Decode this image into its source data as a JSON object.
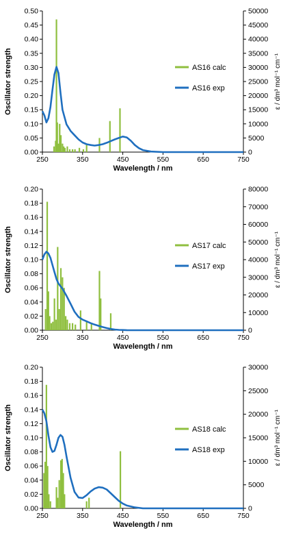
{
  "chart_data": [
    {
      "type": "bar+line",
      "xlabel": "Wavelength / nm",
      "ylabel": "Oscillator strength",
      "y2label": "ε / dm³ mol⁻¹ cm⁻¹",
      "xlim": [
        250,
        750
      ],
      "ylim": [
        0,
        0.5
      ],
      "y2lim": [
        0,
        50000
      ],
      "x_ticks": [
        "250",
        "350",
        "450",
        "550",
        "650",
        "750"
      ],
      "y_ticks": [
        "0.00",
        "0.05",
        "0.10",
        "0.15",
        "0.20",
        "0.25",
        "0.30",
        "0.35",
        "0.40",
        "0.45",
        "0.50"
      ],
      "y2_ticks": [
        "0",
        "5000",
        "10000",
        "15000",
        "20000",
        "25000",
        "30000",
        "35000",
        "40000",
        "45000",
        "50000"
      ],
      "legend_position": "right",
      "calc_color": "#8fbf3f",
      "exp_color": "#1f6fbf",
      "series": [
        {
          "name": "AS16 calc",
          "kind": "stick",
          "x": [
            279,
            283,
            285,
            287,
            290,
            293,
            296,
            300,
            303,
            306,
            312,
            318,
            325,
            331,
            342,
            352,
            360,
            392,
            418,
            443
          ],
          "values": [
            0.02,
            0.04,
            0.47,
            0.105,
            0.03,
            0.1,
            0.06,
            0.03,
            0.02,
            0.015,
            0.02,
            0.01,
            0.01,
            0.01,
            0.015,
            0.01,
            0.025,
            0.05,
            0.11,
            0.155
          ]
        },
        {
          "name": "AS16 exp",
          "kind": "line",
          "x": [
            250,
            255,
            260,
            265,
            270,
            275,
            280,
            285,
            290,
            295,
            300,
            310,
            320,
            330,
            340,
            350,
            360,
            370,
            380,
            390,
            400,
            410,
            420,
            430,
            440,
            450,
            460,
            470,
            480,
            490,
            500,
            520,
            550,
            600,
            700,
            750
          ],
          "values": [
            14500,
            13000,
            10500,
            12000,
            16000,
            22000,
            27500,
            30200,
            28000,
            21000,
            15000,
            9800,
            7500,
            6000,
            4500,
            3400,
            2800,
            2500,
            2300,
            2500,
            2800,
            3300,
            3900,
            4500,
            5000,
            5500,
            5200,
            4000,
            2500,
            1400,
            700,
            200,
            0,
            0,
            0,
            0
          ]
        }
      ]
    },
    {
      "type": "bar+line",
      "xlabel": "Wavelength / nm",
      "ylabel": "Oscillator strength",
      "y2label": "ε / dm³ mol⁻¹ cm⁻¹",
      "xlim": [
        250,
        750
      ],
      "ylim": [
        0,
        0.2
      ],
      "y2lim": [
        0,
        80000
      ],
      "x_ticks": [
        "250",
        "350",
        "450",
        "550",
        "650",
        "750"
      ],
      "y_ticks": [
        "0.00",
        "0.02",
        "0.04",
        "0.06",
        "0.08",
        "0.10",
        "0.12",
        "0.14",
        "0.16",
        "0.18",
        "0.20"
      ],
      "y2_ticks": [
        "0",
        "10000",
        "20000",
        "30000",
        "40000",
        "50000",
        "60000",
        "70000",
        "80000"
      ],
      "legend_position": "right",
      "calc_color": "#8fbf3f",
      "exp_color": "#1f6fbf",
      "series": [
        {
          "name": "AS17 calc",
          "kind": "stick",
          "x": [
            258,
            262,
            265,
            268,
            272,
            276,
            280,
            284,
            288,
            292,
            296,
            300,
            304,
            308,
            312,
            318,
            325,
            332,
            345,
            360,
            372,
            392,
            395,
            420
          ],
          "values": [
            0.03,
            0.182,
            0.055,
            0.02,
            0.01,
            0.012,
            0.045,
            0.015,
            0.118,
            0.03,
            0.088,
            0.075,
            0.06,
            0.02,
            0.015,
            0.01,
            0.01,
            0.008,
            0.028,
            0.012,
            0.01,
            0.084,
            0.045,
            0.024
          ]
        },
        {
          "name": "AS17 exp",
          "kind": "line",
          "x": [
            250,
            255,
            260,
            265,
            270,
            275,
            280,
            285,
            290,
            300,
            310,
            320,
            330,
            340,
            350,
            360,
            370,
            380,
            390,
            400,
            410,
            420,
            430,
            440,
            450,
            460,
            480,
            500,
            550,
            750
          ],
          "values": [
            40000,
            43000,
            44500,
            43500,
            41000,
            37000,
            33000,
            29000,
            26500,
            23500,
            19500,
            15000,
            10500,
            7500,
            6000,
            5000,
            4000,
            3200,
            2500,
            1800,
            1200,
            700,
            400,
            200,
            100,
            50,
            0,
            0,
            0,
            0
          ]
        }
      ]
    },
    {
      "type": "bar+line",
      "xlabel": "Wavelength / nm",
      "ylabel": "Oscillator strength",
      "y2label": "ε / dm³ mol⁻¹ cm⁻¹",
      "xlim": [
        250,
        750
      ],
      "ylim": [
        0,
        0.2
      ],
      "y2lim": [
        0,
        30000
      ],
      "x_ticks": [
        "250",
        "350",
        "450",
        "550",
        "650",
        "750"
      ],
      "y_ticks": [
        "0.00",
        "0.02",
        "0.04",
        "0.06",
        "0.08",
        "0.10",
        "0.12",
        "0.14",
        "0.16",
        "0.18",
        "0.20"
      ],
      "y2_ticks": [
        "0",
        "5000",
        "10000",
        "15000",
        "20000",
        "25000",
        "30000"
      ],
      "legend_position": "right",
      "calc_color": "#8fbf3f",
      "exp_color": "#1f6fbf",
      "series": [
        {
          "name": "AS18 calc",
          "kind": "stick",
          "x": [
            254,
            257,
            260,
            263,
            266,
            270,
            285,
            288,
            292,
            296,
            299,
            302,
            305,
            360,
            366,
            444
          ],
          "values": [
            0.05,
            0.066,
            0.175,
            0.06,
            0.02,
            0.01,
            0.03,
            0.015,
            0.04,
            0.068,
            0.07,
            0.05,
            0.02,
            0.01,
            0.015,
            0.081
          ]
        },
        {
          "name": "AS18 exp",
          "kind": "line",
          "x": [
            250,
            255,
            260,
            265,
            270,
            275,
            280,
            285,
            290,
            295,
            300,
            305,
            310,
            320,
            330,
            340,
            350,
            360,
            370,
            380,
            390,
            400,
            410,
            420,
            430,
            440,
            450,
            460,
            480,
            500,
            550,
            750
          ],
          "values": [
            21000,
            20200,
            18500,
            15500,
            13000,
            12000,
            12200,
            13500,
            15000,
            15600,
            15200,
            13500,
            11000,
            6500,
            3500,
            2300,
            2200,
            2800,
            3600,
            4200,
            4500,
            4400,
            4000,
            3200,
            2400,
            1600,
            1000,
            600,
            200,
            0,
            0,
            0
          ]
        }
      ]
    }
  ]
}
